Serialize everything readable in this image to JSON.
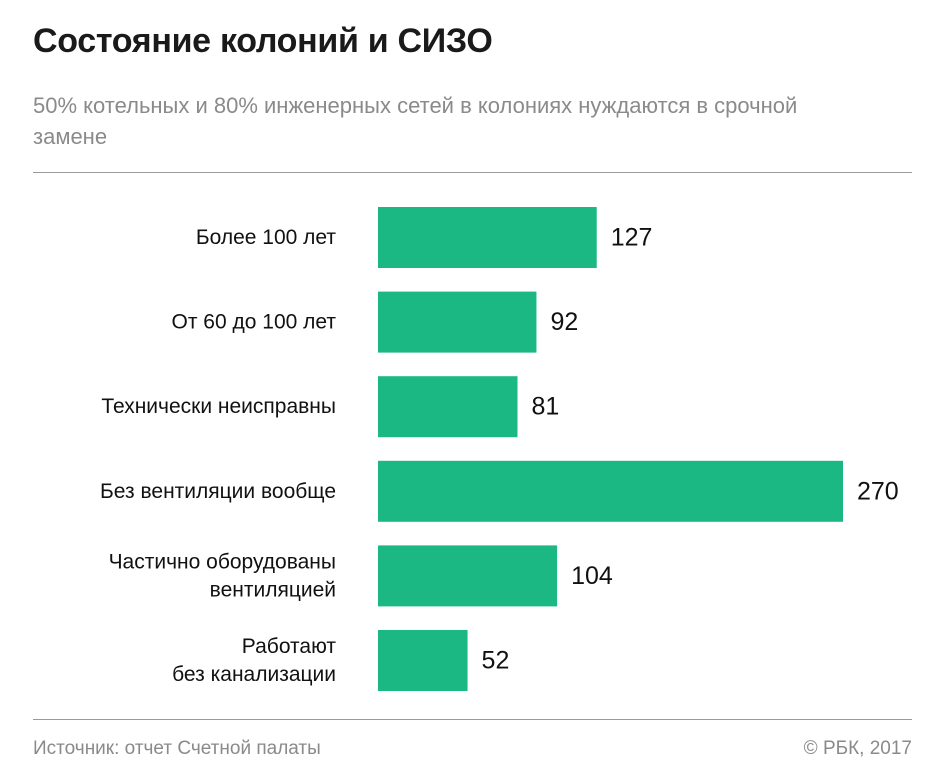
{
  "header": {
    "title": "Состояние колоний и СИЗО",
    "subtitle": "50% котельных и 80% инженерных сетей в колониях нуждаются в срочной замене"
  },
  "chart_data": {
    "type": "bar",
    "orientation": "horizontal",
    "categories": [
      [
        "Более 100 лет"
      ],
      [
        "От 60 до 100 лет"
      ],
      [
        "Технически неисправны"
      ],
      [
        "Без вентиляции вообще"
      ],
      [
        "Частично оборудованы",
        "вентиляцией"
      ],
      [
        "Работают",
        "без канализации"
      ]
    ],
    "values": [
      127,
      92,
      81,
      270,
      104,
      52
    ],
    "xlim": [
      0,
      270
    ],
    "grid": false,
    "legend": "none",
    "bar_color": "#1cb884"
  },
  "footer": {
    "source": "Источник: отчет Счетной палаты",
    "copyright": "© РБК, 2017"
  }
}
